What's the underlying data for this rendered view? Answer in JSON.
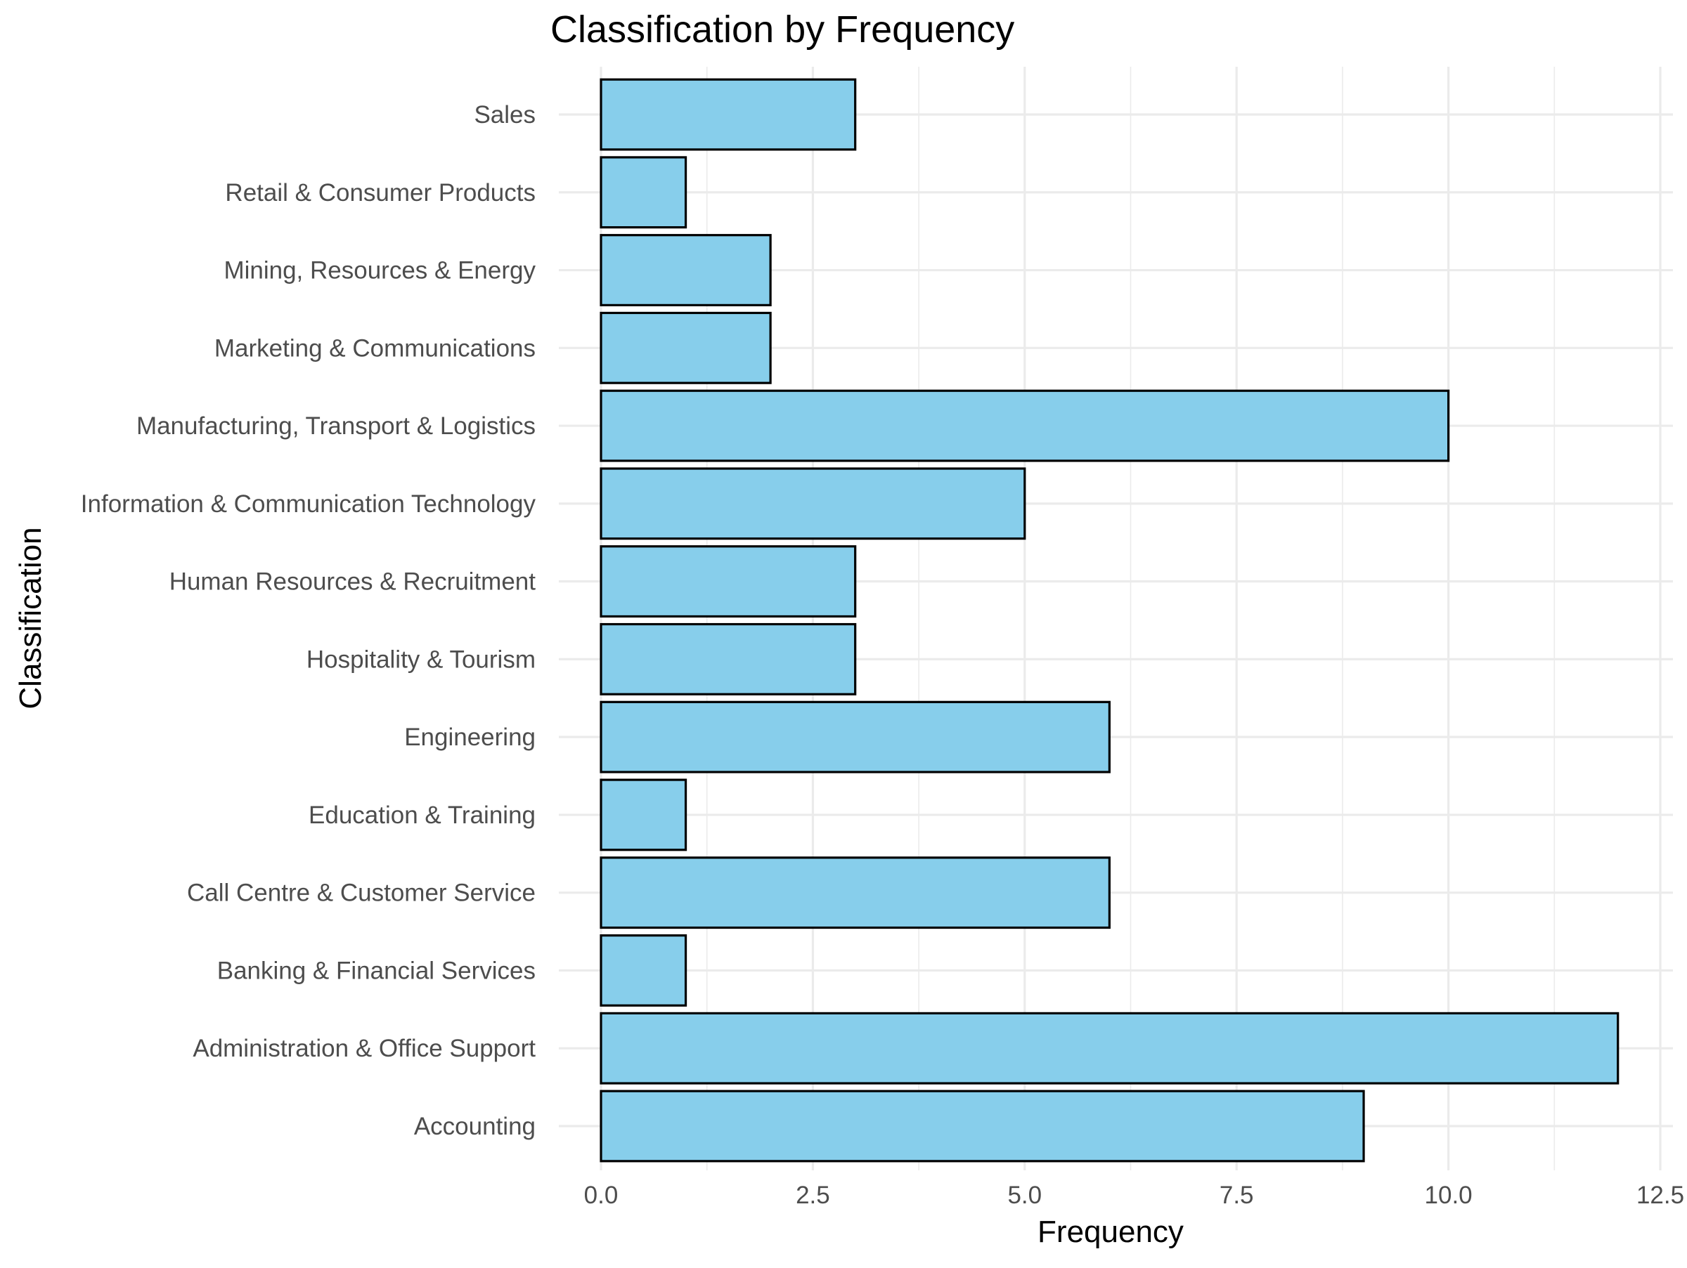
{
  "chart_data": {
    "type": "bar",
    "orientation": "horizontal",
    "title": "Classification by Frequency",
    "xlabel": "Frequency",
    "ylabel": "Classification",
    "categories": [
      "Accounting",
      "Administration & Office Support",
      "Banking & Financial Services",
      "Call Centre & Customer Service",
      "Education & Training",
      "Engineering",
      "Hospitality & Tourism",
      "Human Resources & Recruitment",
      "Information & Communication Technology",
      "Manufacturing, Transport & Logistics",
      "Marketing & Communications",
      "Mining, Resources & Energy",
      "Retail & Consumer Products",
      "Sales"
    ],
    "values": [
      9,
      12,
      1,
      6,
      1,
      6,
      3,
      3,
      5,
      10,
      2,
      2,
      1,
      3
    ],
    "xlim": [
      0,
      12.5
    ],
    "xticks": [
      0,
      2.5,
      5,
      7.5,
      10,
      12.5
    ],
    "xtick_labels": [
      "0.0",
      "2.5",
      "5.0",
      "7.5",
      "10.0",
      "12.5"
    ],
    "grid": true,
    "legend": "none",
    "colors": {
      "bar_fill": "#87ceeb",
      "bar_stroke": "#000000",
      "grid": "#ebebeb",
      "tick_text": "#4d4d4d",
      "title_text": "#000000"
    }
  }
}
